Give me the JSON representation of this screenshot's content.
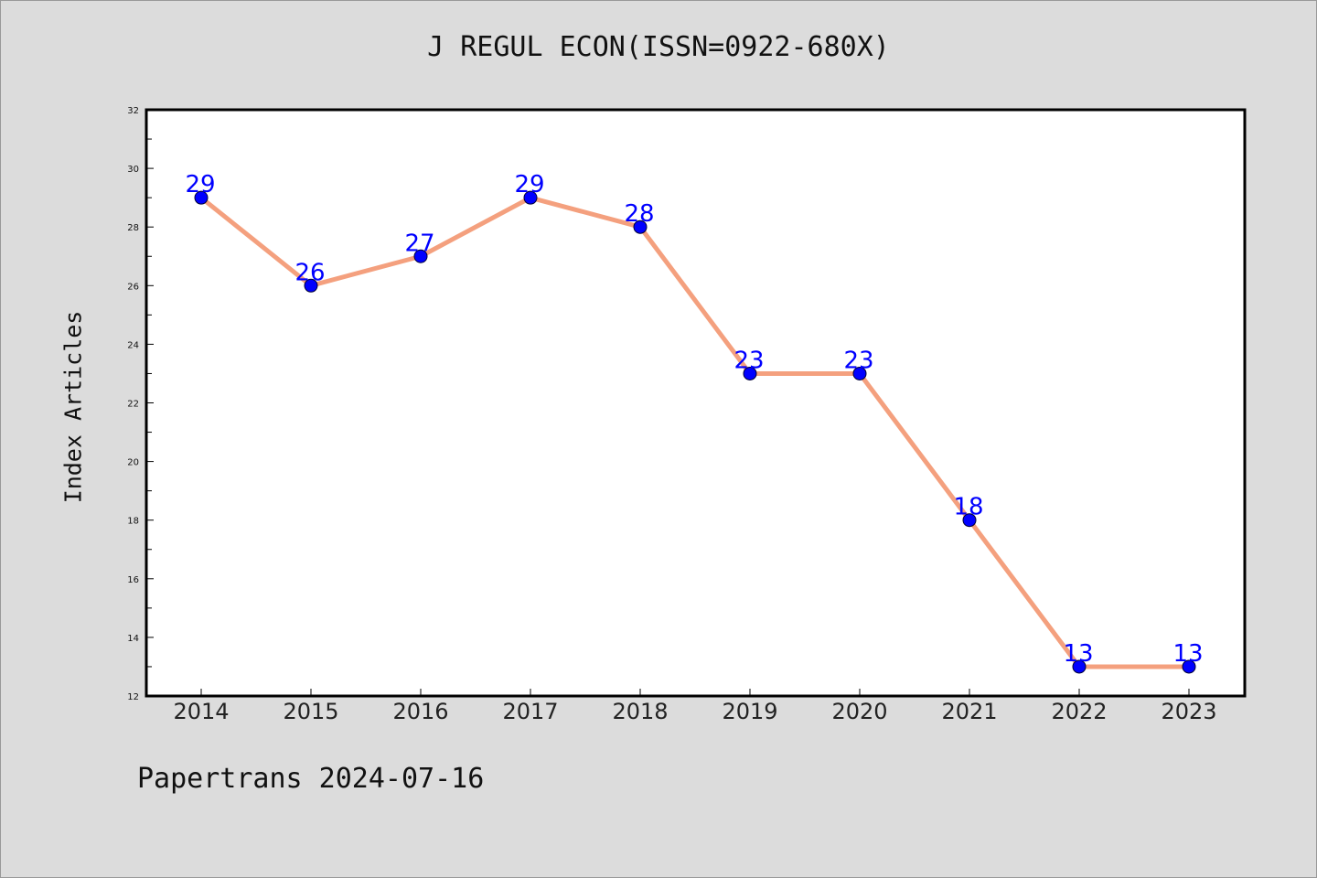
{
  "chart_data": {
    "type": "line",
    "title": "J REGUL ECON(ISSN=0922-680X)",
    "xlabel": "",
    "ylabel": "Index Articles",
    "categories": [
      "2014",
      "2015",
      "2016",
      "2017",
      "2018",
      "2019",
      "2020",
      "2021",
      "2022",
      "2023"
    ],
    "values": [
      29,
      26,
      27,
      29,
      28,
      23,
      23,
      18,
      13,
      13
    ],
    "ylim": [
      12,
      32
    ],
    "yticks": [
      12,
      14,
      16,
      18,
      20,
      22,
      24,
      26,
      28,
      30,
      32
    ],
    "grid": false,
    "data_labels": true,
    "colors": {
      "line": "#f4a07e",
      "marker": "#0000ff",
      "label": "#0000ff"
    }
  },
  "footer": {
    "text": "Papertrans 2024-07-16"
  }
}
